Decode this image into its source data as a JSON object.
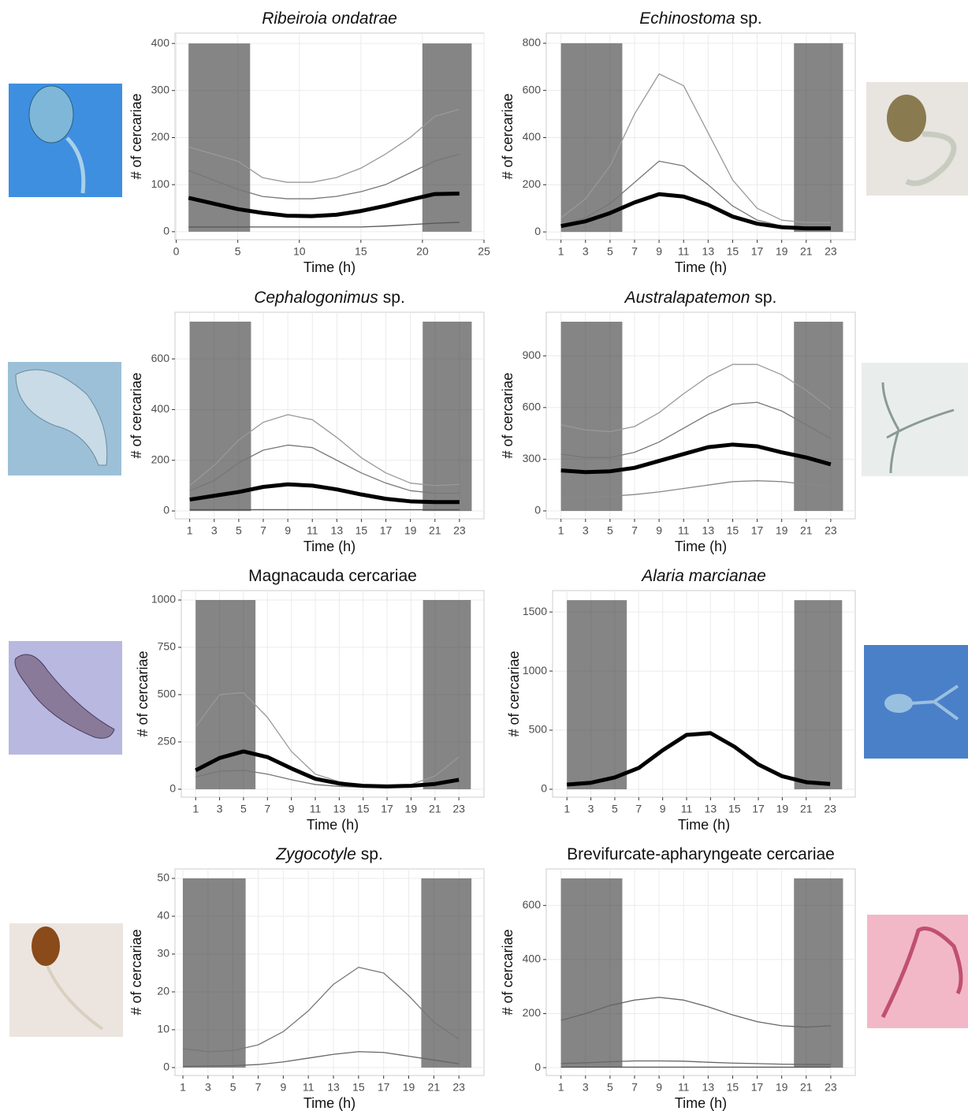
{
  "chart_data": [
    {
      "type": "line",
      "title": [
        {
          "text": "Ribeiroia ondatrae",
          "italic": true
        }
      ],
      "xlabel": "Time (h)",
      "ylabel": "# of cercariae",
      "xlim": [
        -0.1,
        25
      ],
      "xticks": [
        0,
        5,
        10,
        15,
        20,
        25
      ],
      "ylim": [
        -17,
        422
      ],
      "yticks": [
        0,
        100,
        200,
        300,
        400
      ],
      "grid": true,
      "shaded": [
        {
          "x": [
            1,
            6
          ],
          "y": [
            0,
            400
          ]
        },
        {
          "x": [
            20,
            24
          ],
          "y": [
            0,
            400
          ]
        }
      ],
      "x": [
        1,
        3,
        5,
        7,
        9,
        11,
        13,
        15,
        17,
        19,
        21,
        23
      ],
      "series": [
        {
          "color": "#999999",
          "values": [
            180,
            165,
            150,
            115,
            105,
            105,
            115,
            135,
            165,
            200,
            245,
            260
          ]
        },
        {
          "color": "#777777",
          "values": [
            130,
            110,
            90,
            75,
            70,
            70,
            75,
            85,
            100,
            125,
            150,
            165
          ]
        },
        {
          "color": "#555555",
          "values": [
            10,
            10,
            10,
            10,
            10,
            10,
            10,
            10,
            12,
            15,
            18,
            20
          ]
        },
        {
          "color": "#000000",
          "bold": true,
          "values": [
            72,
            60,
            48,
            40,
            34,
            33,
            36,
            44,
            55,
            68,
            80,
            81
          ]
        }
      ]
    },
    {
      "type": "line",
      "title": [
        {
          "text": "Echinostoma",
          "italic": true
        },
        {
          "text": "sp."
        }
      ],
      "xlabel": "Time (h)",
      "ylabel": "# of cercariae",
      "xlim": [
        -0.2,
        25
      ],
      "xticks": [
        1,
        3,
        5,
        7,
        9,
        11,
        13,
        15,
        17,
        19,
        21,
        23
      ],
      "ylim": [
        -33,
        843
      ],
      "yticks": [
        0,
        200,
        400,
        600,
        800
      ],
      "grid": true,
      "shaded": [
        {
          "x": [
            1,
            6
          ],
          "y": [
            0,
            800
          ]
        },
        {
          "x": [
            20,
            24
          ],
          "y": [
            0,
            800
          ]
        }
      ],
      "x": [
        1,
        3,
        5,
        7,
        9,
        11,
        13,
        15,
        17,
        19,
        21,
        23
      ],
      "series": [
        {
          "color": "#999999",
          "values": [
            60,
            140,
            280,
            500,
            670,
            620,
            420,
            220,
            100,
            50,
            40,
            40
          ]
        },
        {
          "color": "#777777",
          "values": [
            30,
            60,
            120,
            210,
            300,
            280,
            200,
            110,
            50,
            25,
            20,
            20
          ]
        },
        {
          "color": "#000000",
          "bold": true,
          "values": [
            25,
            45,
            80,
            125,
            160,
            150,
            115,
            65,
            35,
            20,
            15,
            15
          ]
        }
      ]
    },
    {
      "type": "line",
      "title": [
        {
          "text": "Cephalogonimus",
          "italic": true
        },
        {
          "text": "sp."
        }
      ],
      "xlabel": "Time (h)",
      "ylabel": "# of cercariae",
      "xlim": [
        -0.2,
        25
      ],
      "xticks": [
        1,
        3,
        5,
        7,
        9,
        11,
        13,
        15,
        17,
        19,
        21,
        23
      ],
      "ylim": [
        -31,
        784
      ],
      "yticks": [
        0,
        200,
        400,
        600
      ],
      "grid": true,
      "shaded": [
        {
          "x": [
            1,
            6
          ],
          "y": [
            0,
            747
          ]
        },
        {
          "x": [
            20,
            24
          ],
          "y": [
            0,
            747
          ]
        }
      ],
      "x": [
        1,
        3,
        5,
        7,
        9,
        11,
        13,
        15,
        17,
        19,
        21,
        23
      ],
      "series": [
        {
          "color": "#999999",
          "values": [
            100,
            180,
            280,
            350,
            380,
            360,
            290,
            210,
            150,
            110,
            100,
            105
          ]
        },
        {
          "color": "#777777",
          "values": [
            80,
            120,
            190,
            240,
            260,
            250,
            200,
            150,
            110,
            80,
            70,
            70
          ]
        },
        {
          "color": "#555555",
          "values": [
            5,
            5,
            5,
            5,
            5,
            5,
            5,
            5,
            5,
            5,
            5,
            5
          ]
        },
        {
          "color": "#000000",
          "bold": true,
          "values": [
            45,
            60,
            75,
            95,
            105,
            100,
            85,
            65,
            48,
            38,
            35,
            35
          ]
        }
      ]
    },
    {
      "type": "line",
      "title": [
        {
          "text": "Australapatemon",
          "italic": true
        },
        {
          "text": "sp."
        }
      ],
      "xlabel": "Time (h)",
      "ylabel": "# of cercariae",
      "xlim": [
        -0.2,
        25
      ],
      "xticks": [
        1,
        3,
        5,
        7,
        9,
        11,
        13,
        15,
        17,
        19,
        21,
        23
      ],
      "ylim": [
        -46,
        1153
      ],
      "yticks": [
        0,
        300,
        600,
        900
      ],
      "grid": true,
      "shaded": [
        {
          "x": [
            1,
            6
          ],
          "y": [
            0,
            1098
          ]
        },
        {
          "x": [
            20,
            24
          ],
          "y": [
            0,
            1098
          ]
        }
      ],
      "x": [
        1,
        3,
        5,
        7,
        9,
        11,
        13,
        15,
        17,
        19,
        21,
        23
      ],
      "series": [
        {
          "color": "#999999",
          "values": [
            500,
            470,
            460,
            490,
            570,
            680,
            780,
            850,
            850,
            790,
            700,
            590
          ]
        },
        {
          "color": "#777777",
          "values": [
            330,
            310,
            310,
            340,
            400,
            480,
            560,
            620,
            630,
            580,
            500,
            420
          ]
        },
        {
          "color": "#888888",
          "values": [
            80,
            80,
            85,
            95,
            110,
            130,
            150,
            170,
            175,
            170,
            155,
            140
          ]
        },
        {
          "color": "#000000",
          "bold": true,
          "values": [
            235,
            225,
            230,
            250,
            290,
            330,
            370,
            385,
            375,
            340,
            310,
            270
          ]
        }
      ]
    },
    {
      "type": "line",
      "title": [
        {
          "text": "Magnacauda cercariae"
        }
      ],
      "xlabel": "Time (h)",
      "ylabel": "# of cercariae",
      "xlim": [
        -0.2,
        25.1
      ],
      "xticks": [
        1,
        3,
        5,
        7,
        9,
        11,
        13,
        15,
        17,
        19,
        21,
        23
      ],
      "ylim": [
        -42,
        1050
      ],
      "yticks": [
        0,
        250,
        500,
        750,
        1000
      ],
      "grid": true,
      "shaded": [
        {
          "x": [
            1,
            6
          ],
          "y": [
            0,
            1000
          ]
        },
        {
          "x": [
            20,
            24
          ],
          "y": [
            0,
            1000
          ]
        }
      ],
      "x": [
        1,
        3,
        5,
        7,
        9,
        11,
        13,
        15,
        17,
        19,
        21,
        23
      ],
      "series": [
        {
          "color": "#999999",
          "values": [
            330,
            500,
            510,
            380,
            200,
            80,
            40,
            20,
            20,
            25,
            70,
            170
          ]
        },
        {
          "color": "#777777",
          "values": [
            65,
            95,
            100,
            80,
            50,
            25,
            15,
            10,
            10,
            12,
            25,
            55
          ]
        },
        {
          "color": "#000000",
          "bold": true,
          "values": [
            100,
            165,
            200,
            170,
            110,
            55,
            30,
            18,
            15,
            18,
            28,
            50
          ]
        }
      ]
    },
    {
      "type": "line",
      "title": [
        {
          "text": "Alaria marcianae",
          "italic": true
        }
      ],
      "xlabel": "Time (h)",
      "ylabel": "# of cercariae",
      "xlim": [
        -0.2,
        25.1
      ],
      "xticks": [
        1,
        3,
        5,
        7,
        9,
        11,
        13,
        15,
        17,
        19,
        21,
        23
      ],
      "ylim": [
        -67,
        1681
      ],
      "yticks": [
        0,
        500,
        1000,
        1500
      ],
      "grid": true,
      "shaded": [
        {
          "x": [
            1,
            6
          ],
          "y": [
            0,
            1600
          ]
        },
        {
          "x": [
            20,
            24
          ],
          "y": [
            0,
            1600
          ]
        }
      ],
      "x": [
        1,
        3,
        5,
        7,
        9,
        11,
        13,
        15,
        17,
        19,
        21,
        23
      ],
      "series": [
        {
          "color": "#000000",
          "bold": true,
          "values": [
            40,
            55,
            100,
            180,
            330,
            460,
            475,
            360,
            210,
            110,
            60,
            45
          ]
        }
      ]
    },
    {
      "type": "line",
      "title": [
        {
          "text": "Zygocotyle",
          "italic": true
        },
        {
          "text": "sp."
        }
      ],
      "xlabel": "Time (h)",
      "ylabel": "# of cercariae",
      "xlim": [
        0.37,
        25
      ],
      "xticks": [
        1,
        3,
        5,
        7,
        9,
        11,
        13,
        15,
        17,
        19,
        21,
        23
      ],
      "ylim": [
        -2.1,
        52.5
      ],
      "yticks": [
        0,
        10,
        20,
        30,
        40,
        50
      ],
      "grid": true,
      "shaded": [
        {
          "x": [
            1,
            6
          ],
          "y": [
            0,
            50
          ]
        },
        {
          "x": [
            20,
            24
          ],
          "y": [
            0,
            50
          ]
        }
      ],
      "x": [
        1,
        3,
        5,
        7,
        9,
        11,
        13,
        15,
        17,
        19,
        21,
        23
      ],
      "series": [
        {
          "color": "#777777",
          "values": [
            5,
            4.2,
            4.5,
            6,
            9.5,
            15,
            22,
            26.5,
            25,
            19,
            12,
            7.5
          ]
        },
        {
          "color": "#666666",
          "values": [
            0.3,
            0.4,
            0.5,
            0.8,
            1.5,
            2.5,
            3.5,
            4.2,
            4,
            3,
            2,
            1
          ]
        }
      ]
    },
    {
      "type": "line",
      "title": [
        {
          "text": "Brevifurcate-apharyngeate cercariae"
        }
      ],
      "xlabel": "Time (h)",
      "ylabel": "# of cercariae",
      "xlim": [
        -0.2,
        25
      ],
      "xticks": [
        1,
        3,
        5,
        7,
        9,
        11,
        13,
        15,
        17,
        19,
        21,
        23
      ],
      "ylim": [
        -29,
        735
      ],
      "yticks": [
        0,
        200,
        400,
        600
      ],
      "grid": true,
      "shaded": [
        {
          "x": [
            1,
            6
          ],
          "y": [
            0,
            700
          ]
        },
        {
          "x": [
            20,
            24
          ],
          "y": [
            0,
            700
          ]
        }
      ],
      "x": [
        1,
        3,
        5,
        7,
        9,
        11,
        13,
        15,
        17,
        19,
        21,
        23
      ],
      "series": [
        {
          "color": "#666666",
          "values": [
            175,
            200,
            230,
            250,
            260,
            250,
            225,
            195,
            170,
            155,
            150,
            155
          ]
        },
        {
          "color": "#666666",
          "values": [
            15,
            18,
            22,
            25,
            25,
            24,
            20,
            17,
            15,
            13,
            12,
            12
          ]
        },
        {
          "color": "#555555",
          "values": [
            2,
            2,
            2,
            2,
            2,
            2,
            2,
            2,
            2,
            2,
            2,
            2
          ]
        }
      ]
    }
  ]
}
